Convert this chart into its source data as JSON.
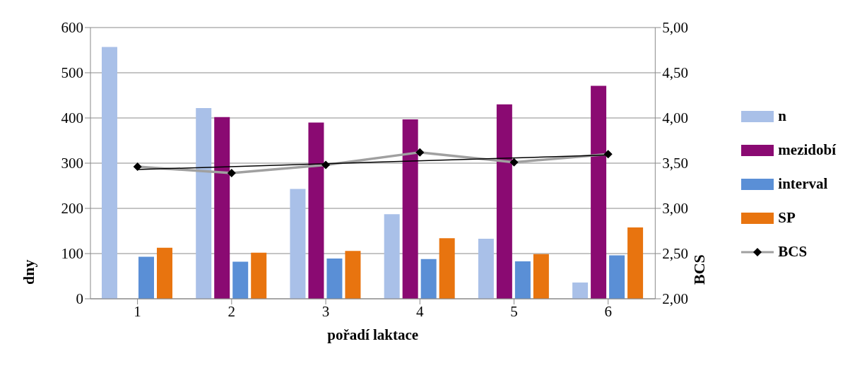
{
  "chart_data": {
    "type": "bar",
    "xlabel": "pořadí laktace",
    "ylabel": "dny",
    "y2label": "BCS",
    "categories": [
      "1",
      "2",
      "3",
      "4",
      "5",
      "6"
    ],
    "series": [
      {
        "name": "n",
        "color": "#a9c0e8",
        "values": [
          557,
          422,
          243,
          187,
          133,
          36
        ]
      },
      {
        "name": "mezidobí",
        "color": "#8a0a72",
        "values": [
          null,
          402,
          390,
          397,
          430,
          471
        ]
      },
      {
        "name": "interval",
        "color": "#5a8fd6",
        "values": [
          93,
          82,
          89,
          88,
          83,
          96
        ]
      },
      {
        "name": "SP",
        "color": "#e8740f",
        "values": [
          113,
          102,
          106,
          134,
          99,
          158
        ]
      },
      {
        "name": "BCS",
        "type": "line",
        "axis": "y2",
        "color": "#a0a0a0",
        "marker": "diamond",
        "values": [
          3.46,
          3.39,
          3.48,
          3.62,
          3.51,
          3.6
        ]
      },
      {
        "type": "line",
        "axis": "y2",
        "color": "#000000",
        "x": [
          "1",
          "6"
        ],
        "values": [
          3.43,
          3.59
        ]
      }
    ],
    "ylim": [
      0,
      600
    ],
    "yticks": [
      0,
      100,
      200,
      300,
      400,
      500,
      600
    ],
    "y2lim": [
      2,
      5
    ],
    "y2ticks": [
      {
        "value": 2,
        "label": "2,00"
      },
      {
        "value": 2.5,
        "label": "2,50"
      },
      {
        "value": 3,
        "label": "3,00"
      },
      {
        "value": 3.5,
        "label": "3,50"
      },
      {
        "value": 4,
        "label": "4,00"
      },
      {
        "value": 4.5,
        "label": "4,50"
      },
      {
        "value": 5,
        "label": "5,00"
      }
    ],
    "grid": "y",
    "legend": "right"
  }
}
